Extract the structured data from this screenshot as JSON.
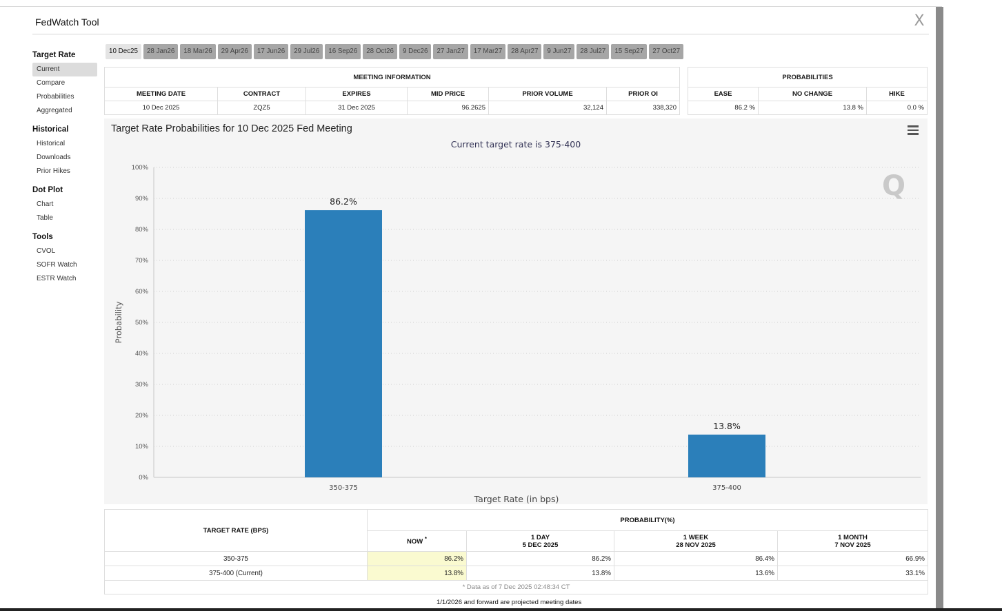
{
  "app": {
    "title": "FedWatch Tool",
    "close_label": "X"
  },
  "sidebar": {
    "groups": [
      {
        "heading": "Target Rate",
        "items": [
          "Current",
          "Compare",
          "Probabilities",
          "Aggregated"
        ]
      },
      {
        "heading": "Historical",
        "items": [
          "Historical",
          "Downloads",
          "Prior Hikes"
        ]
      },
      {
        "heading": "Dot Plot",
        "items": [
          "Chart",
          "Table"
        ]
      },
      {
        "heading": "Tools",
        "items": [
          "CVOL",
          "SOFR Watch",
          "ESTR Watch"
        ]
      }
    ],
    "active_item": "Current"
  },
  "tabs": [
    "10 Dec25",
    "28 Jan26",
    "18 Mar26",
    "29 Apr26",
    "17 Jun26",
    "29 Jul26",
    "16 Sep26",
    "28 Oct26",
    "9 Dec26",
    "27 Jan27",
    "17 Mar27",
    "28 Apr27",
    "9 Jun27",
    "28 Jul27",
    "15 Sep27",
    "27 Oct27"
  ],
  "active_tab": "10 Dec25",
  "meeting_info": {
    "caption": "MEETING INFORMATION",
    "headers": [
      "MEETING DATE",
      "CONTRACT",
      "EXPIRES",
      "MID PRICE",
      "PRIOR VOLUME",
      "PRIOR OI"
    ],
    "row": [
      "10 Dec 2025",
      "ZQZ5",
      "31 Dec 2025",
      "96.2625",
      "32,124",
      "338,320"
    ]
  },
  "probabilities": {
    "caption": "PROBABILITIES",
    "headers": [
      "EASE",
      "NO CHANGE",
      "HIKE"
    ],
    "row": [
      "86.2 %",
      "13.8 %",
      "0.0 %"
    ]
  },
  "chart_data": {
    "type": "bar",
    "title": "Target Rate Probabilities for 10 Dec 2025 Fed Meeting",
    "subtitle": "Current target rate is 375-400",
    "categories": [
      "350-375",
      "375-400"
    ],
    "values": [
      86.2,
      13.8
    ],
    "data_labels": [
      "86.2%",
      "13.8%"
    ],
    "xlabel": "Target Rate (in bps)",
    "ylabel": "Probability",
    "ylim": [
      0,
      100
    ],
    "yticks": [
      "0%",
      "10%",
      "20%",
      "30%",
      "40%",
      "50%",
      "60%",
      "70%",
      "80%",
      "90%",
      "100%"
    ],
    "grid": true,
    "bar_color": "#2b7fba"
  },
  "prob_table": {
    "col_target": "TARGET RATE (BPS)",
    "col_prob": "PROBABILITY(%)",
    "now_label": "NOW",
    "now_mark": "*",
    "day_label": "1 DAY",
    "day_date": "5 DEC 2025",
    "week_label": "1 WEEK",
    "week_date": "28 NOV 2025",
    "month_label": "1 MONTH",
    "month_date": "7 NOV 2025",
    "rows": [
      {
        "rate": "350-375",
        "now": "86.2%",
        "day": "86.2%",
        "week": "86.4%",
        "month": "66.9%"
      },
      {
        "rate": "375-400 (Current)",
        "now": "13.8%",
        "day": "13.8%",
        "week": "13.6%",
        "month": "33.1%"
      }
    ],
    "footnote": "* Data as of 7 Dec 2025 02:48:34 CT"
  },
  "projected_note": "1/1/2026 and forward are projected meeting dates"
}
